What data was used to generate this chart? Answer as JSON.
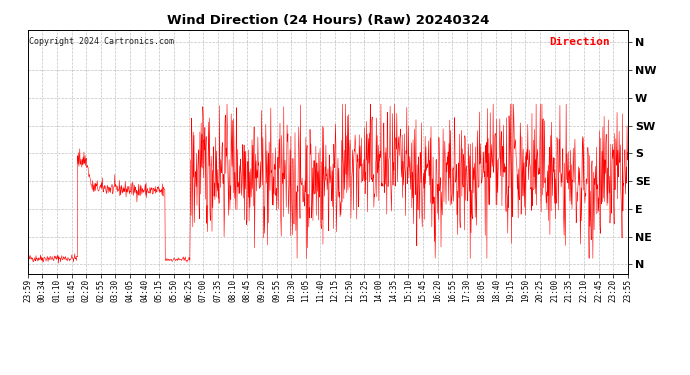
{
  "title": "Wind Direction (24 Hours) (Raw) 20240324",
  "copyright_text": "Copyright 2024 Cartronics.com",
  "legend_label": "Direction",
  "legend_color": "#ff0000",
  "line_color": "#ff0000",
  "bg_color": "#ffffff",
  "grid_color": "#999999",
  "ytick_labels": [
    "N",
    "NW",
    "W",
    "SW",
    "S",
    "SE",
    "E",
    "NE",
    "N"
  ],
  "ytick_values": [
    360,
    315,
    270,
    225,
    180,
    135,
    90,
    45,
    0
  ],
  "ylim": [
    -15,
    380
  ],
  "xtick_labels": [
    "23:59",
    "00:34",
    "01:10",
    "01:45",
    "02:20",
    "02:55",
    "03:30",
    "04:05",
    "04:40",
    "05:15",
    "05:50",
    "06:25",
    "07:00",
    "07:35",
    "08:10",
    "08:45",
    "09:20",
    "09:55",
    "10:30",
    "11:05",
    "11:40",
    "12:15",
    "12:50",
    "13:25",
    "14:00",
    "14:35",
    "15:10",
    "15:45",
    "16:20",
    "16:55",
    "17:30",
    "18:05",
    "18:40",
    "19:15",
    "19:50",
    "20:25",
    "21:00",
    "21:35",
    "22:10",
    "22:45",
    "23:20",
    "23:55"
  ],
  "seed": 42,
  "n_points": 1440
}
